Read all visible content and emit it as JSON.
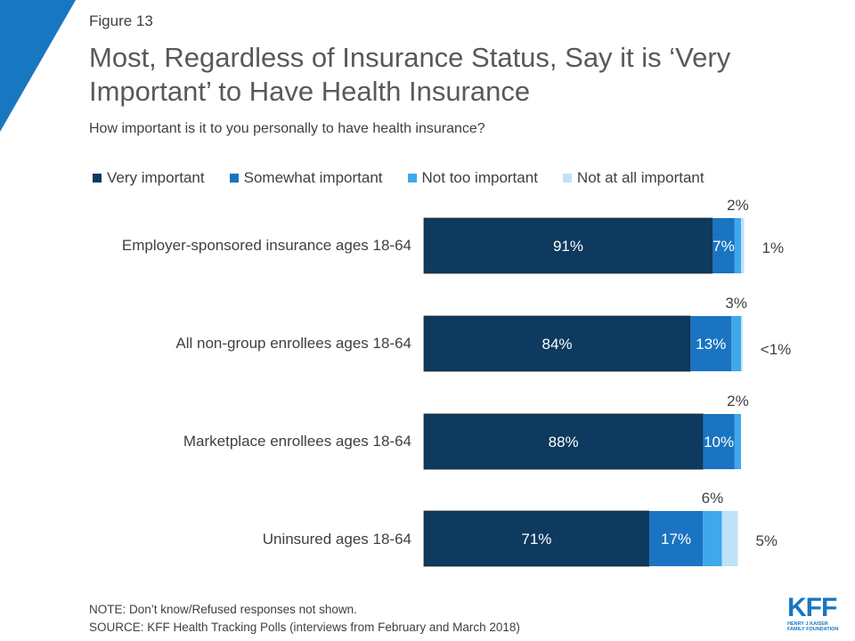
{
  "figure_label": "Figure 13",
  "title": "Most, Regardless of Insurance Status, Say it is ‘Very Important’ to Have Health Insurance",
  "subtitle": "How important is it to you personally to have health insurance?",
  "colors": {
    "very": "#0d3a5e",
    "somewhat": "#1a74c2",
    "not_too": "#3ea8ea",
    "not_at_all": "#bfe2f9",
    "corner": "#1877c1"
  },
  "note": "NOTE: Don’t know/Refused responses not shown.",
  "source": "SOURCE: KFF Health Tracking Polls (interviews from February and March 2018)",
  "logo": {
    "mark": "KFF",
    "line1": "HENRY J KAISER",
    "line2": "FAMILY FOUNDATION"
  },
  "chart_data": {
    "type": "bar",
    "orientation": "horizontal",
    "stacked": true,
    "categories": [
      "Employer-sponsored insurance ages 18-64",
      "All non-group enrollees ages 18-64",
      "Marketplace enrollees ages 18-64",
      "Uninsured ages 18-64"
    ],
    "series": [
      {
        "name": "Very important",
        "values": [
          91,
          84,
          88,
          71
        ],
        "labels": [
          "91%",
          "84%",
          "88%",
          "71%"
        ]
      },
      {
        "name": "Somewhat important",
        "values": [
          7,
          13,
          10,
          17
        ],
        "labels": [
          "7%",
          "13%",
          "10%",
          "17%"
        ]
      },
      {
        "name": "Not too important",
        "values": [
          2,
          3,
          2,
          6
        ],
        "labels": [
          "2%",
          "3%",
          "2%",
          "6%"
        ]
      },
      {
        "name": "Not at all important",
        "values": [
          1,
          0.5,
          0,
          5
        ],
        "labels": [
          "1%",
          "<1%",
          "",
          "5%"
        ]
      }
    ],
    "xlim": [
      0,
      100
    ],
    "legend": "top",
    "grid": false,
    "xlabel": "",
    "ylabel": ""
  }
}
